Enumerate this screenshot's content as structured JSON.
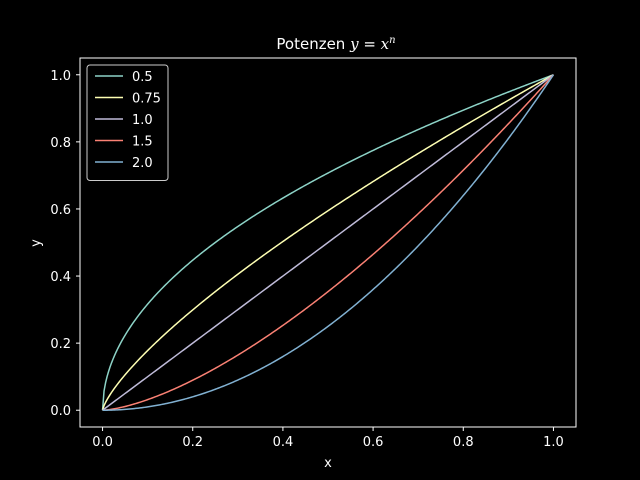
{
  "chart_data": {
    "type": "line",
    "title": {
      "prefix": "Potenzen ",
      "math_y": "y",
      "math_eq": " = ",
      "math_x": "x",
      "math_n": "n"
    },
    "xlabel": "x",
    "ylabel": "y",
    "xlim": [
      -0.05,
      1.05
    ],
    "ylim": [
      -0.05,
      1.05
    ],
    "x_ticks": [
      "0.0",
      "0.2",
      "0.4",
      "0.6",
      "0.8",
      "1.0"
    ],
    "y_ticks": [
      "0.0",
      "0.2",
      "0.4",
      "0.6",
      "0.8",
      "1.0"
    ],
    "grid": false,
    "legend_position": "upper-left",
    "background": "#000000",
    "foreground": "#ffffff",
    "series": [
      {
        "name": "0.5",
        "exponent": 0.5,
        "color": "#8dd3c7"
      },
      {
        "name": "0.75",
        "exponent": 0.75,
        "color": "#feffb3"
      },
      {
        "name": "1.0",
        "exponent": 1.0,
        "color": "#bfbbd9"
      },
      {
        "name": "1.5",
        "exponent": 1.5,
        "color": "#fa8174"
      },
      {
        "name": "2.0",
        "exponent": 2.0,
        "color": "#81b1d2"
      }
    ],
    "x_domain": [
      0,
      1
    ]
  }
}
